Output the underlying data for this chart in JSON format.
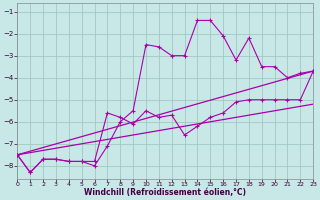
{
  "xlabel": "Windchill (Refroidissement éolien,°C)",
  "background_color": "#c8e8e8",
  "grid_color": "#a0c8c0",
  "line_color": "#aa00aa",
  "xlim_min": 0,
  "xlim_max": 23,
  "ylim_min": -8.6,
  "ylim_max": -0.6,
  "yticks": [
    -8,
    -7,
    -6,
    -5,
    -4,
    -3,
    -2,
    -1
  ],
  "xticks": [
    0,
    1,
    2,
    3,
    4,
    5,
    6,
    7,
    8,
    9,
    10,
    11,
    12,
    13,
    14,
    15,
    16,
    17,
    18,
    19,
    20,
    21,
    22,
    23
  ],
  "line1_x": [
    0,
    1,
    2,
    3,
    4,
    5,
    6,
    7,
    8,
    9,
    10,
    11,
    12,
    13,
    14,
    15,
    16,
    17,
    18,
    19,
    20,
    21,
    22,
    23
  ],
  "line1_y": [
    -7.5,
    -8.3,
    -7.7,
    -7.7,
    -7.8,
    -7.8,
    -7.8,
    -5.6,
    -5.8,
    -6.1,
    -5.5,
    -5.8,
    -5.7,
    -6.6,
    -6.2,
    -5.8,
    -5.6,
    -5.1,
    -5.0,
    -5.0,
    -5.0,
    -5.0,
    -5.0,
    -3.7
  ],
  "line2_x": [
    0,
    1,
    2,
    3,
    4,
    5,
    6,
    7,
    8,
    9,
    10,
    11,
    12,
    13,
    14,
    15,
    16,
    17,
    18,
    19,
    20,
    21,
    22,
    23
  ],
  "line2_y": [
    -7.5,
    -8.3,
    -7.7,
    -7.7,
    -7.8,
    -7.8,
    -8.0,
    -7.1,
    -6.0,
    -5.5,
    -2.5,
    -2.6,
    -3.0,
    -3.0,
    -1.4,
    -1.4,
    -2.1,
    -3.2,
    -2.2,
    -3.5,
    -3.5,
    -4.0,
    -3.8,
    -3.7
  ],
  "line3_x": [
    0,
    23
  ],
  "line3_y": [
    -7.5,
    -3.7
  ],
  "line4_x": [
    0,
    23
  ],
  "line4_y": [
    -7.5,
    -5.2
  ]
}
